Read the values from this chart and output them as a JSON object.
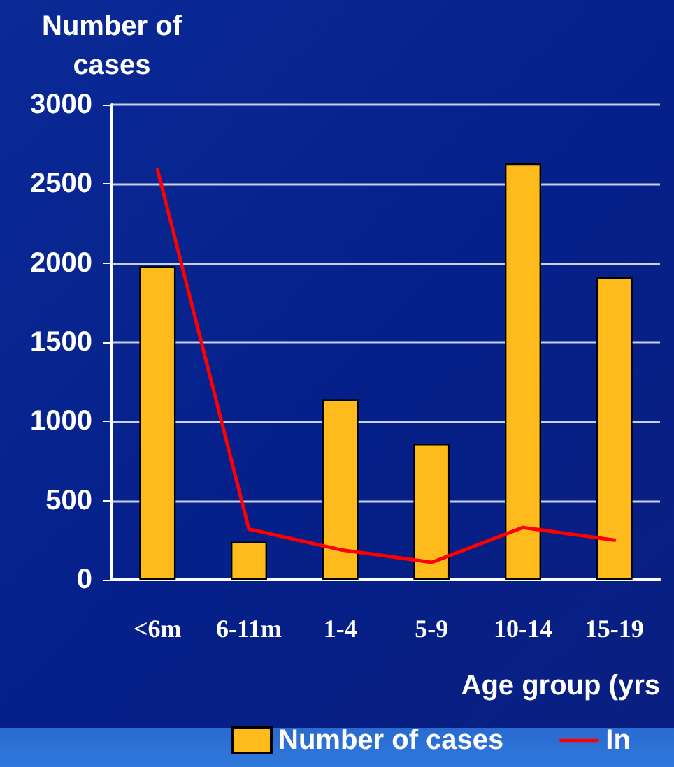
{
  "chart_data": {
    "type": "bar",
    "ylabel": "Number of\ncases",
    "xlabel": "Age group (yrs",
    "categories": [
      "<6m",
      "6-11m",
      "1-4",
      "5-9",
      "10-14",
      "15-19"
    ],
    "series": [
      {
        "name": "Number of cases",
        "color": "#ffbb1c",
        "values": [
          1980,
          240,
          1140,
          860,
          2630,
          1910
        ]
      },
      {
        "name": "In",
        "type": "line",
        "color": "#ff0000",
        "marker": "none",
        "values": [
          2590,
          320,
          190,
          110,
          330,
          250
        ]
      }
    ],
    "ylim": [
      0,
      3000
    ],
    "yticks": [
      0,
      500,
      1000,
      1500,
      2000,
      2500,
      3000
    ],
    "grid": "y",
    "legend": "bottom"
  }
}
